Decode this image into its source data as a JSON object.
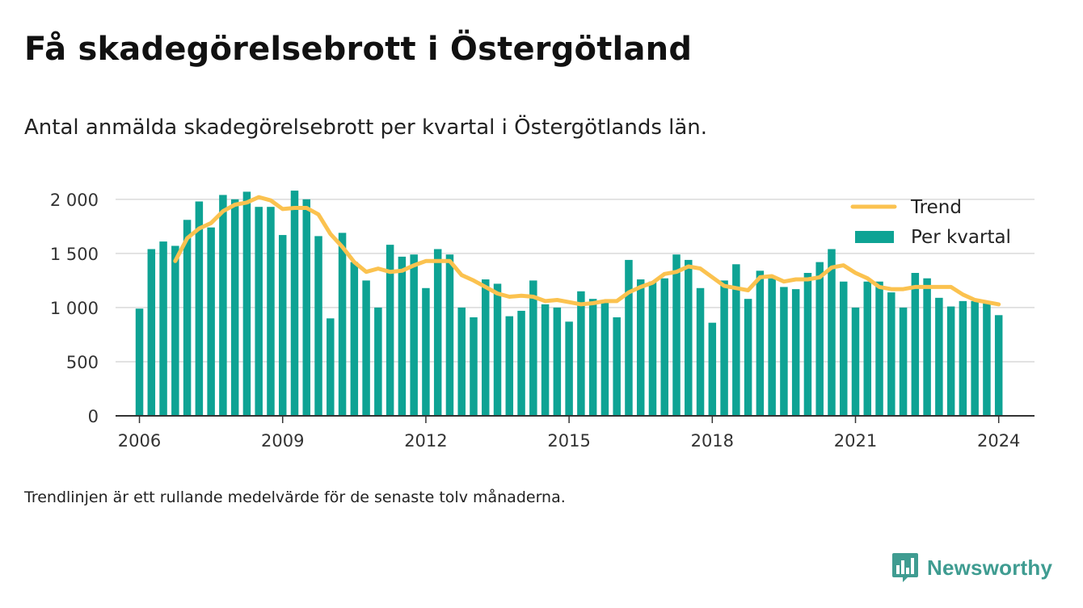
{
  "title": "Få skadegörelsebrott i Östergötland",
  "subtitle": "Antal anmälda skadegörelsebrott per kvartal i Östergötlands län.",
  "note": "Trendlinjen är ett rullande medelvärde för de senaste tolv månaderna.",
  "brand": {
    "name": "Newsworthy",
    "icon": "newsworthy-logo-icon"
  },
  "colors": {
    "bars": "#0ea394",
    "trend": "#fbc24f",
    "grid": "#d9d9d9",
    "axis": "#333333"
  },
  "chart_data": {
    "type": "bar",
    "title": "Få skadegörelsebrott i Östergötland",
    "xlabel": "",
    "ylabel": "",
    "ylim": [
      0,
      2200
    ],
    "xlim": [
      2005.5,
      2024.75
    ],
    "y_ticks": [
      0,
      500,
      1000,
      1500,
      2000
    ],
    "y_tick_labels": [
      "0",
      "500",
      "1 000",
      "1 500",
      "2 000"
    ],
    "x_ticks": [
      2006,
      2009,
      2012,
      2015,
      2018,
      2021,
      2024
    ],
    "x_tick_labels": [
      "2006",
      "2009",
      "2012",
      "2015",
      "2018",
      "2021",
      "2024"
    ],
    "grid": true,
    "legend_position": "top-right",
    "x_start": 2006,
    "x_step": 0.25,
    "series": [
      {
        "name": "Per kvartal",
        "type": "bar",
        "values": [
          990,
          1540,
          1610,
          1570,
          1810,
          1980,
          1740,
          2040,
          2000,
          2070,
          1930,
          1930,
          1670,
          2080,
          2000,
          1660,
          900,
          1690,
          1420,
          1250,
          1000,
          1580,
          1470,
          1490,
          1180,
          1540,
          1490,
          1000,
          910,
          1260,
          1220,
          920,
          970,
          1250,
          1030,
          1000,
          870,
          1150,
          1080,
          1070,
          910,
          1440,
          1260,
          1240,
          1270,
          1490,
          1440,
          1180,
          860,
          1250,
          1400,
          1080,
          1340,
          1270,
          1190,
          1170,
          1320,
          1420,
          1540,
          1240,
          1000,
          1240,
          1240,
          1140,
          1000,
          1320,
          1270,
          1090,
          1010,
          1060,
          1060,
          1040,
          930
        ]
      },
      {
        "name": "Trend",
        "type": "line",
        "x_start": 2006.75,
        "values": [
          1430,
          1640,
          1730,
          1780,
          1890,
          1950,
          1970,
          2020,
          1990,
          1910,
          1920,
          1920,
          1860,
          1680,
          1560,
          1420,
          1330,
          1360,
          1330,
          1340,
          1390,
          1430,
          1430,
          1430,
          1300,
          1250,
          1190,
          1130,
          1100,
          1110,
          1100,
          1060,
          1070,
          1050,
          1030,
          1040,
          1060,
          1060,
          1140,
          1190,
          1230,
          1310,
          1330,
          1380,
          1360,
          1280,
          1200,
          1180,
          1160,
          1280,
          1290,
          1240,
          1260,
          1260,
          1280,
          1370,
          1390,
          1320,
          1270,
          1190,
          1170,
          1170,
          1190,
          1190,
          1190,
          1190,
          1120,
          1070,
          1050,
          1030
        ]
      }
    ]
  }
}
